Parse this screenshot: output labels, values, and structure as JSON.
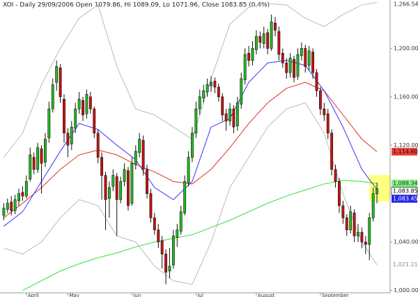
{
  "chart_data": {
    "type": "candlestick",
    "title": "XOI - Daily 29/09/2006 Open 1079.86, Hi 1089.09, Lo 1071.96, Close 1083.85 (0.4%)",
    "xlim": [
      -1,
      102.5
    ],
    "ylim": [
      998,
      1240
    ],
    "yticks": [
      {
        "value": 1000,
        "label": "1,000.00"
      },
      {
        "value": 1040,
        "label": "1,040.00"
      },
      {
        "value": 1120,
        "label": "1,120.00"
      },
      {
        "value": 1160,
        "label": "1,160.00"
      },
      {
        "value": 1200,
        "label": "1,200.00"
      }
    ],
    "top_label": "1,266.54",
    "xticks": [
      {
        "value": 6,
        "label": "April"
      },
      {
        "value": 17,
        "label": "May"
      },
      {
        "value": 34,
        "label": "Jun"
      },
      {
        "value": 51,
        "label": "Jul"
      },
      {
        "value": 67,
        "label": "August"
      },
      {
        "value": 84,
        "label": "September"
      }
    ],
    "up_color": "#22bb22",
    "down_color": "#cc1111",
    "open": [
      1062,
      1067,
      1073,
      1066,
      1074,
      1081,
      1078,
      1092,
      1110,
      1100,
      1117,
      1106,
      1126,
      1150,
      1172,
      1184,
      1158,
      1130,
      1121,
      1134,
      1150,
      1157,
      1146,
      1160,
      1150,
      1130,
      1110,
      1095,
      1076,
      1086,
      1094,
      1075,
      1090,
      1099,
      1072,
      1104,
      1114,
      1124,
      1100,
      1080,
      1060,
      1050,
      1041,
      1030,
      1016,
      1021,
      1044,
      1049,
      1064,
      1089,
      1110,
      1130,
      1150,
      1159,
      1164,
      1169,
      1173,
      1168,
      1160,
      1146,
      1140,
      1150,
      1136,
      1154,
      1174,
      1196,
      1190,
      1199,
      1210,
      1204,
      1213,
      1200,
      1221,
      1214,
      1196,
      1188,
      1180,
      1191,
      1177,
      1194,
      1200,
      1186,
      1197,
      1180,
      1165,
      1150,
      1146,
      1130,
      1100,
      1090,
      1070,
      1060,
      1050,
      1064,
      1045,
      1048,
      1040,
      1038,
      1060,
      1079.86
    ],
    "high": [
      1072,
      1076,
      1078,
      1079,
      1084,
      1086,
      1095,
      1118,
      1114,
      1122,
      1120,
      1130,
      1156,
      1175,
      1190,
      1187,
      1162,
      1134,
      1140,
      1155,
      1164,
      1160,
      1166,
      1164,
      1152,
      1133,
      1114,
      1098,
      1090,
      1100,
      1097,
      1094,
      1105,
      1102,
      1110,
      1120,
      1130,
      1128,
      1104,
      1084,
      1064,
      1055,
      1045,
      1034,
      1035,
      1050,
      1055,
      1070,
      1095,
      1115,
      1135,
      1156,
      1166,
      1170,
      1175,
      1177,
      1176,
      1171,
      1163,
      1150,
      1155,
      1153,
      1160,
      1180,
      1200,
      1202,
      1206,
      1215,
      1214,
      1218,
      1216,
      1228,
      1226,
      1218,
      1200,
      1192,
      1196,
      1194,
      1200,
      1205,
      1203,
      1202,
      1200,
      1183,
      1168,
      1155,
      1150,
      1133,
      1104,
      1093,
      1074,
      1063,
      1070,
      1067,
      1055,
      1052,
      1045,
      1064,
      1085,
      1089.09
    ],
    "low": [
      1058,
      1064,
      1062,
      1063,
      1070,
      1074,
      1076,
      1090,
      1096,
      1097,
      1080,
      1102,
      1122,
      1147,
      1165,
      1155,
      1122,
      1110,
      1116,
      1130,
      1146,
      1140,
      1142,
      1146,
      1126,
      1105,
      1075,
      1050,
      1060,
      1082,
      1045,
      1072,
      1086,
      1066,
      1070,
      1100,
      1110,
      1095,
      1076,
      1056,
      1046,
      1035,
      1018,
      1005,
      1010,
      1018,
      1036,
      1046,
      1062,
      1086,
      1106,
      1126,
      1145,
      1155,
      1160,
      1164,
      1163,
      1156,
      1140,
      1132,
      1136,
      1130,
      1132,
      1150,
      1170,
      1185,
      1186,
      1195,
      1200,
      1200,
      1195,
      1198,
      1210,
      1190,
      1184,
      1175,
      1176,
      1172,
      1174,
      1190,
      1180,
      1182,
      1175,
      1160,
      1145,
      1140,
      1125,
      1095,
      1085,
      1064,
      1055,
      1045,
      1047,
      1040,
      1040,
      1035,
      1030,
      1025,
      1057,
      1071.96
    ],
    "close": [
      1068,
      1072,
      1066,
      1075,
      1080,
      1078,
      1090,
      1112,
      1100,
      1118,
      1105,
      1125,
      1150,
      1170,
      1185,
      1160,
      1130,
      1120,
      1135,
      1150,
      1158,
      1145,
      1162,
      1150,
      1130,
      1110,
      1095,
      1075,
      1085,
      1095,
      1075,
      1090,
      1100,
      1070,
      1105,
      1115,
      1125,
      1100,
      1080,
      1060,
      1050,
      1040,
      1030,
      1015,
      1020,
      1045,
      1050,
      1065,
      1090,
      1110,
      1130,
      1150,
      1160,
      1165,
      1170,
      1172,
      1168,
      1160,
      1145,
      1140,
      1150,
      1135,
      1155,
      1175,
      1195,
      1190,
      1200,
      1210,
      1205,
      1212,
      1200,
      1222,
      1215,
      1195,
      1188,
      1180,
      1192,
      1176,
      1195,
      1200,
      1185,
      1198,
      1180,
      1165,
      1150,
      1145,
      1130,
      1100,
      1090,
      1070,
      1060,
      1050,
      1065,
      1045,
      1048,
      1040,
      1038,
      1060,
      1080,
      1083.85
    ],
    "close_label": "1,083.85",
    "line_x": [
      0,
      5,
      10,
      15,
      20,
      25,
      30,
      35,
      40,
      45,
      50,
      55,
      60,
      65,
      70,
      75,
      80,
      85,
      90,
      95,
      99
    ],
    "lines": [
      {
        "color": "#bbbbbb",
        "values": [
          1110,
          1130,
          1170,
          1200,
          1225,
          1236,
          1185,
          1150,
          1145,
          1135,
          1125,
          1175,
          1220,
          1234,
          1237,
          1236,
          1225,
          1218,
          1228,
          1236,
          1238
        ]
      },
      {
        "color": "#bbbbbb",
        "values": [
          1035,
          1030,
          1040,
          1060,
          1075,
          1070,
          1045,
          1040,
          1020,
          1008,
          1005,
          1040,
          1085,
          1110,
          1135,
          1150,
          1155,
          1130,
          1080,
          1040,
          1021.21
        ],
        "last_label": "1,021.21",
        "label_fill": "none",
        "label_text": "#888888"
      },
      {
        "color": "#33dd33",
        "values": [
          null,
          1000,
          1008,
          1016,
          1022,
          1027,
          1031,
          1036,
          1040,
          1043,
          1046,
          1052,
          1058,
          1065,
          1072,
          1078,
          1083,
          1088,
          1091,
          1090,
          1088.34
        ],
        "last_label": "1,088.34",
        "label_fill": "#88ee88",
        "label_text": "#114411"
      },
      {
        "color": "#e03020",
        "values": [
          1060,
          1072,
          1085,
          1100,
          1112,
          1116,
          1112,
          1104,
          1098,
          1090,
          1088,
          1100,
          1118,
          1138,
          1155,
          1167,
          1172,
          1165,
          1145,
          1125,
          1114.6
        ],
        "last_label": "1,114.60",
        "label_fill": "#e8413b",
        "label_text": "#330000"
      },
      {
        "color": "#3333ff",
        "values": [
          1053,
          1065,
          1090,
          1115,
          1138,
          1133,
          1120,
          1108,
          1085,
          1075,
          1090,
          1135,
          1142,
          1172,
          1188,
          1190,
          1186,
          1165,
          1135,
          1100,
          1083.45
        ],
        "last_label": "1,083.45",
        "label_fill": "#2222ee",
        "label_text": "#ffffff"
      }
    ]
  }
}
